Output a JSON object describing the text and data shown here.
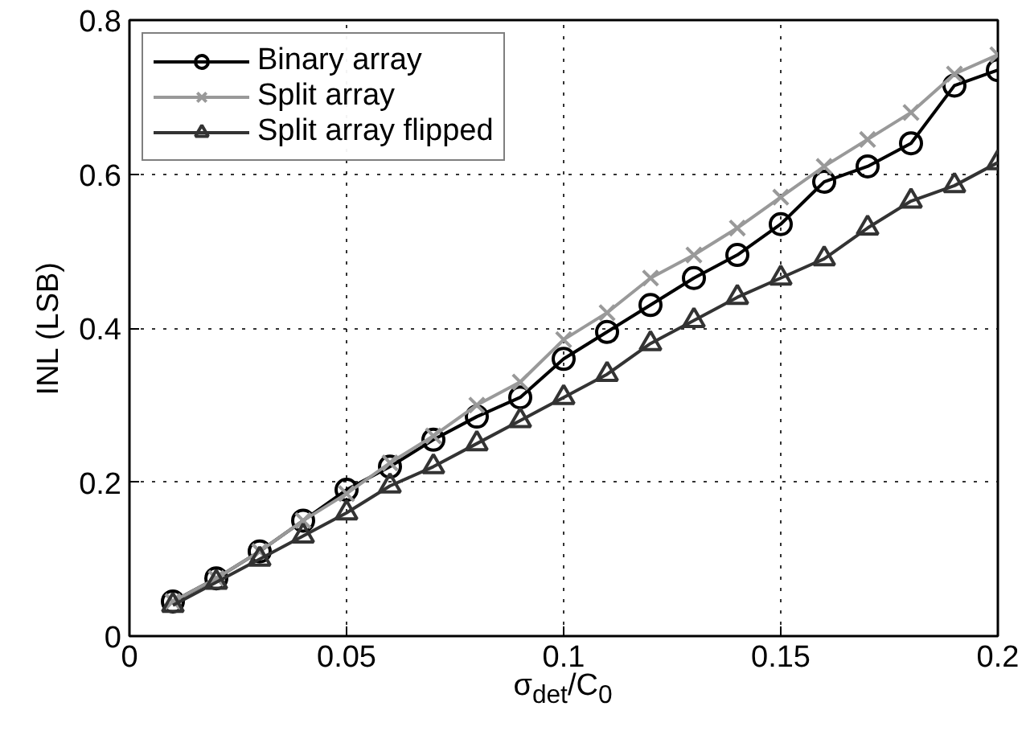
{
  "chart_data": {
    "type": "line",
    "x": [
      0.01,
      0.02,
      0.03,
      0.04,
      0.05,
      0.06,
      0.07,
      0.08,
      0.09,
      0.1,
      0.11,
      0.12,
      0.13,
      0.14,
      0.15,
      0.16,
      0.17,
      0.18,
      0.19,
      0.2
    ],
    "series": [
      {
        "name": "Binary array",
        "color": "#000000",
        "marker": "circle",
        "values": [
          0.045,
          0.075,
          0.11,
          0.15,
          0.19,
          0.22,
          0.255,
          0.285,
          0.31,
          0.36,
          0.395,
          0.43,
          0.465,
          0.495,
          0.535,
          0.59,
          0.61,
          0.64,
          0.715,
          0.735
        ]
      },
      {
        "name": "Split array",
        "color": "#999999",
        "marker": "cross",
        "values": [
          0.045,
          0.075,
          0.11,
          0.15,
          0.185,
          0.225,
          0.26,
          0.3,
          0.33,
          0.385,
          0.42,
          0.465,
          0.495,
          0.53,
          0.57,
          0.61,
          0.645,
          0.68,
          0.73,
          0.755
        ]
      },
      {
        "name": "Split array flipped",
        "color": "#333333",
        "marker": "triangle",
        "values": [
          0.04,
          0.07,
          0.1,
          0.13,
          0.16,
          0.195,
          0.22,
          0.25,
          0.28,
          0.31,
          0.34,
          0.38,
          0.41,
          0.44,
          0.465,
          0.49,
          0.53,
          0.565,
          0.585,
          0.615
        ]
      }
    ],
    "xlabel": "σ$_{det}$/C$_{0}$",
    "ylabel": "INL (LSB)",
    "xlim": [
      0,
      0.2
    ],
    "ylim": [
      0,
      0.8
    ],
    "xticks": [
      0,
      0.05,
      0.1,
      0.15,
      0.2
    ],
    "yticks": [
      0,
      0.2,
      0.4,
      0.6,
      0.8
    ],
    "grid": true,
    "legend": "top left",
    "line_style": "solid"
  }
}
